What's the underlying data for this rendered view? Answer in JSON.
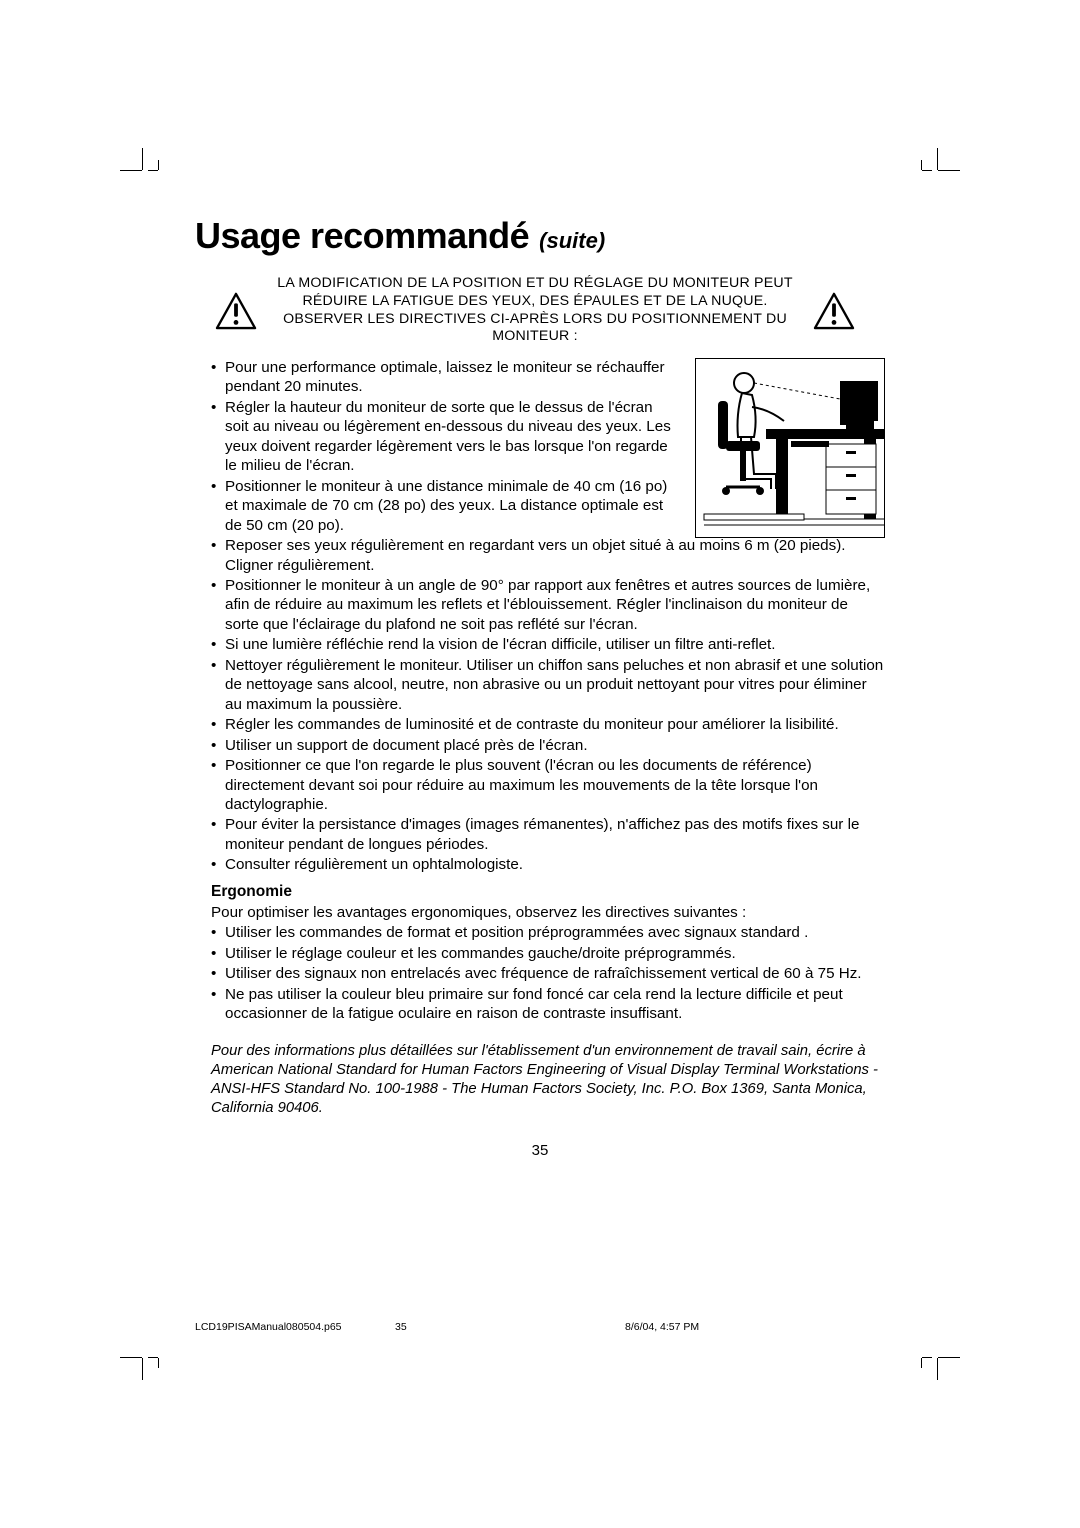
{
  "title": {
    "main": "Usage recommandé",
    "sub": "(suite)"
  },
  "warning_text": "LA MODIFICATION DE LA POSITION ET DU RÉGLAGE DU MONITEUR PEUT RÉDUIRE LA FATIGUE DES YEUX, DES ÉPAULES ET DE LA NUQUE. OBSERVER LES DIRECTIVES CI-APRÈS LORS DU POSITIONNEMENT DU MONITEUR :",
  "bullets_main": [
    {
      "text": "Pour une performance optimale, laissez le moniteur se réchauffer pendant 20 minutes.",
      "short": true
    },
    {
      "text": "Régler la hauteur du moniteur de sorte que le dessus de l'écran soit au niveau ou légèrement en-dessous du niveau des yeux. Les yeux doivent regarder légèrement vers le bas lorsque l'on regarde le milieu de l'écran.",
      "short": true
    },
    {
      "text": "Positionner le moniteur à une distance minimale de 40 cm (16 po) et maximale de 70 cm (28 po) des yeux. La distance optimale est de 50 cm (20 po).",
      "short": true
    },
    {
      "text": "Reposer ses yeux régulièrement en regardant vers un objet situé à au moins 6 m (20 pieds). Cligner régulièrement.",
      "short": false
    },
    {
      "text": "Positionner le moniteur à un angle de 90° par rapport aux fenêtres et autres sources de lumière, afin de réduire au maximum les reflets et l'éblouissement. Régler l'inclinaison du moniteur de sorte que l'éclairage du plafond ne soit pas reflété sur l'écran.",
      "short": false
    },
    {
      "text": "Si une lumière réfléchie rend la vision de l'écran difficile, utiliser un filtre anti-reflet.",
      "short": false
    },
    {
      "text": "Nettoyer régulièrement le moniteur. Utiliser un chiffon sans peluches et non abrasif et une solution de nettoyage sans alcool, neutre, non abrasive ou un produit nettoyant pour vitres pour éliminer au maximum la poussière.",
      "short": false
    },
    {
      "text": "Régler les commandes de luminosité et de contraste du moniteur pour améliorer la lisibilité.",
      "short": false
    },
    {
      "text": "Utiliser un support de document placé près de l'écran.",
      "short": false
    },
    {
      "text": "Positionner ce que l'on regarde le plus souvent (l'écran ou les documents de référence) directement devant soi pour réduire au maximum les mouvements de la tête lorsque l'on dactylographie.",
      "short": false
    },
    {
      "text": "Pour éviter la persistance d'images (images rémanentes), n'affichez pas des motifs fixes sur le moniteur pendant de longues périodes.",
      "short": false
    },
    {
      "text": "Consulter régulièrement un ophtalmologiste.",
      "short": false
    }
  ],
  "ergonomie": {
    "heading": "Ergonomie",
    "intro": "Pour optimiser les avantages ergonomiques, observez les directives suivantes :",
    "bullets": [
      "Utiliser les commandes de format et position préprogrammées avec signaux standard .",
      "Utiliser le réglage couleur et les commandes gauche/droite préprogrammés.",
      "Utiliser des signaux non entrelacés avec fréquence de rafraîchissement vertical de 60 à 75 Hz.",
      "Ne pas utiliser la couleur bleu primaire sur fond foncé car cela rend la lecture difficile et peut occasionner de la fatigue oculaire en raison de contraste insuffisant."
    ]
  },
  "footnote": "Pour des informations plus détaillées sur l'établissement d'un environnement de travail sain, écrire à American National Standard for Human Factors Engineering of Visual Display Terminal Workstations - ANSI-HFS Standard No. 100-1988 - The Human Factors Society, Inc. P.O. Box 1369, Santa Monica, California 90406.",
  "page_number": "35",
  "footer": {
    "file": "LCD19PISAManual080504.p65",
    "page": "35",
    "datetime": "8/6/04, 4:57 PM"
  },
  "colors": {
    "text": "#000000",
    "background": "#ffffff"
  }
}
